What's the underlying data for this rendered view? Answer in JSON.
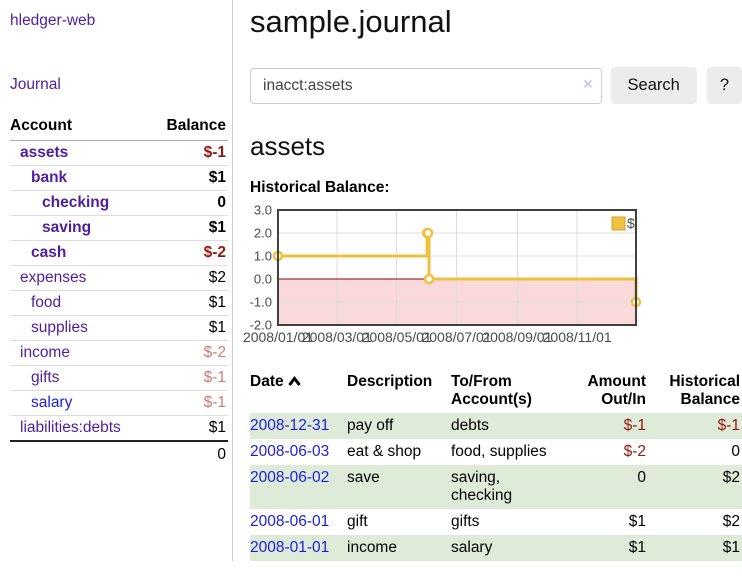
{
  "app": {
    "title": "hledger-web"
  },
  "sidebar": {
    "journal_label": "Journal",
    "headers": {
      "account": "Account",
      "balance": "Balance"
    },
    "accounts": [
      {
        "name": "assets",
        "balance": "$-1",
        "level": 1,
        "bold": true,
        "neg": "strong"
      },
      {
        "name": "bank",
        "balance": "$1",
        "level": 2,
        "bold": true,
        "neg": ""
      },
      {
        "name": "checking",
        "balance": "0",
        "level": 3,
        "bold": true,
        "neg": ""
      },
      {
        "name": "saving",
        "balance": "$1",
        "level": 3,
        "bold": true,
        "neg": ""
      },
      {
        "name": "cash",
        "balance": "$-2",
        "level": 2,
        "bold": true,
        "neg": "strong"
      },
      {
        "name": "expenses",
        "balance": "$2",
        "level": 1,
        "bold": false,
        "neg": ""
      },
      {
        "name": "food",
        "balance": "$1",
        "level": 2,
        "bold": false,
        "neg": ""
      },
      {
        "name": "supplies",
        "balance": "$1",
        "level": 2,
        "bold": false,
        "neg": ""
      },
      {
        "name": "income",
        "balance": "$-2",
        "level": 1,
        "bold": false,
        "neg": "faded"
      },
      {
        "name": "gifts",
        "balance": "$-1",
        "level": 2,
        "bold": false,
        "neg": "faded"
      },
      {
        "name": "salary",
        "balance": "$-1",
        "level": 2,
        "bold": false,
        "neg": "faded",
        "link_color": "blue"
      },
      {
        "name": "liabilities:debts",
        "balance": "$1",
        "level": 1,
        "bold": false,
        "neg": ""
      }
    ],
    "total": "0"
  },
  "main": {
    "title": "sample.journal",
    "search": {
      "value": "inacct:assets",
      "clear_icon": "×",
      "button_label": "Search",
      "help_label": "?"
    },
    "account_heading": "assets",
    "chart_title": "Historical Balance:"
  },
  "chart_data": {
    "type": "line",
    "style": "step-after",
    "title": "Historical Balance:",
    "series": [
      {
        "name": "$",
        "points": [
          [
            "2008-01-01",
            1
          ],
          [
            "2008-06-01",
            2
          ],
          [
            "2008-06-02",
            2
          ],
          [
            "2008-06-03",
            0
          ],
          [
            "2008-12-31",
            -1
          ]
        ]
      }
    ],
    "x_range": [
      "2008-01-01",
      "2008-12-31"
    ],
    "ylim": [
      -2,
      3
    ],
    "y_ticks": [
      {
        "value": 3,
        "label": "3.0"
      },
      {
        "value": 2,
        "label": "2.0"
      },
      {
        "value": 1,
        "label": "1.0"
      },
      {
        "value": 0,
        "label": "0.0"
      },
      {
        "value": -1,
        "label": "-1.0"
      },
      {
        "value": -2,
        "label": "-2.0"
      }
    ],
    "x_ticks": [
      {
        "date": "2008-01-01",
        "label": "2008/01/01"
      },
      {
        "date": "2008-03-01",
        "label": "2008/03/01"
      },
      {
        "date": "2008-05-01",
        "label": "2008/05/01"
      },
      {
        "date": "2008-07-01",
        "label": "2008/07/01"
      },
      {
        "date": "2008-09-01",
        "label": "2008/09/01"
      },
      {
        "date": "2008-11-01",
        "label": "2008/11/01"
      }
    ],
    "legend": {
      "label": "$",
      "position": "top-right"
    },
    "colors": {
      "line": "#edc240",
      "marker_fill": "#ffffff",
      "marker_stroke": "#edc240",
      "zero_line": "#8b0000",
      "negative_fill": "#f9d9d9",
      "grid": "#dcdcdc",
      "border": "#404040",
      "tick_text": "#4a4a4a",
      "legend_box_border": "#cca33a"
    }
  },
  "register": {
    "headers": [
      {
        "lines": [
          "Date"
        ],
        "align": "left",
        "sortable": true
      },
      {
        "lines": [
          "Description"
        ],
        "align": "left",
        "sortable": false
      },
      {
        "lines": [
          "To/From",
          "Account(s)"
        ],
        "align": "left",
        "sortable": false
      },
      {
        "lines": [
          "Amount",
          "Out/In"
        ],
        "align": "right",
        "sortable": false
      },
      {
        "lines": [
          "Historical",
          "Balance"
        ],
        "align": "right",
        "sortable": false
      }
    ],
    "rows": [
      {
        "date": "2008-12-31",
        "description": "pay off",
        "accounts": "debts",
        "amount": "$-1",
        "amount_neg": true,
        "balance": "$-1",
        "balance_neg": true
      },
      {
        "date": "2008-06-03",
        "description": "eat & shop",
        "accounts": "food, supplies",
        "amount": "$-2",
        "amount_neg": true,
        "balance": "0",
        "balance_neg": false
      },
      {
        "date": "2008-06-02",
        "description": "save",
        "accounts": "saving, checking",
        "amount": "0",
        "amount_neg": false,
        "balance": "$2",
        "balance_neg": false
      },
      {
        "date": "2008-06-01",
        "description": "gift",
        "accounts": "gifts",
        "amount": "$1",
        "amount_neg": false,
        "balance": "$2",
        "balance_neg": false
      },
      {
        "date": "2008-01-01",
        "description": "income",
        "accounts": "salary",
        "amount": "$1",
        "amount_neg": false,
        "balance": "$1",
        "balance_neg": false
      }
    ]
  }
}
